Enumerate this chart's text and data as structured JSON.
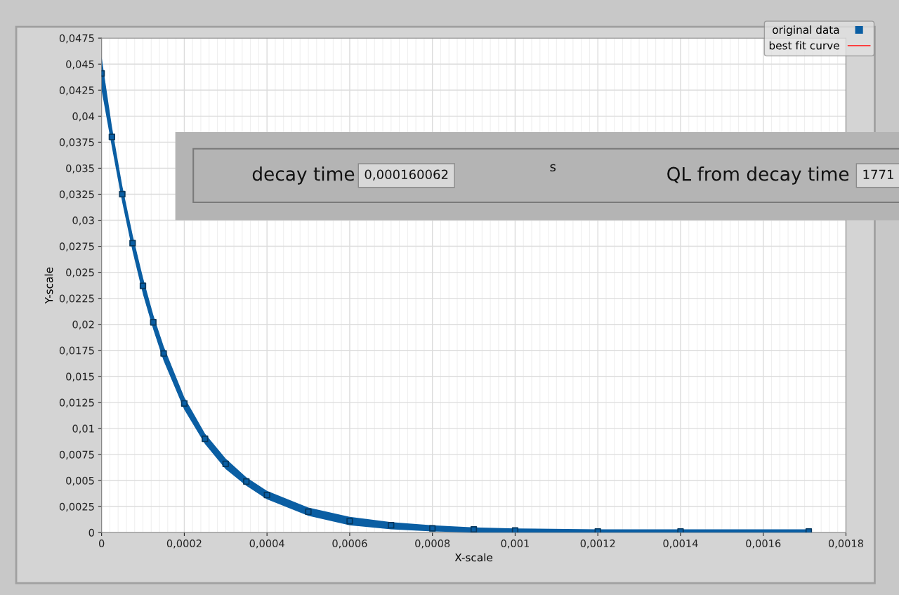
{
  "chart_data": {
    "type": "scatter",
    "xlabel": "X-scale",
    "ylabel": "Y-scale",
    "x": [
      0,
      2.5e-05,
      5e-05,
      7.5e-05,
      0.0001,
      0.000125,
      0.00015,
      0.0002,
      0.00025,
      0.0003,
      0.00035,
      0.0004,
      0.0005,
      0.0006,
      0.0007,
      0.0008,
      0.0009,
      0.001,
      0.0012,
      0.0014,
      0.00171
    ],
    "series": [
      {
        "name": "original data",
        "color": "#0a5ea3",
        "marker": "square",
        "values": [
          0.0441,
          0.038,
          0.0325,
          0.0278,
          0.0237,
          0.0202,
          0.0172,
          0.0124,
          0.009,
          0.0066,
          0.0049,
          0.0036,
          0.002,
          0.0011,
          0.0007,
          0.0004,
          0.0003,
          0.0002,
          0.0001,
          0.0001,
          0.0001
        ],
        "lower": [
          0.0425,
          0.037,
          0.0317,
          0.027,
          0.0229,
          0.0195,
          0.0165,
          0.0118,
          0.0085,
          0.0061,
          0.0045,
          0.0032,
          0.0016,
          0.0007,
          0.0003,
          0.0001,
          0.0,
          0.0,
          0.0,
          0.0,
          0.0
        ],
        "upper": [
          0.0457,
          0.039,
          0.0333,
          0.0286,
          0.0245,
          0.0209,
          0.0179,
          0.013,
          0.0095,
          0.0071,
          0.0053,
          0.004,
          0.0024,
          0.0015,
          0.001,
          0.0007,
          0.0005,
          0.0004,
          0.0003,
          0.0003,
          0.0003
        ]
      },
      {
        "name": "best fit curve",
        "type": "line",
        "color": "#ff4040",
        "line_style": "solid",
        "values": [
          null,
          null,
          null,
          null,
          null,
          null,
          null,
          null,
          null,
          null,
          null,
          null,
          null,
          null,
          null,
          null,
          null,
          null,
          null,
          null,
          null
        ]
      }
    ],
    "xlim": [
      0,
      0.0018
    ],
    "xticks": [
      0,
      {
        "value": 0.0002,
        "label": "0,0002"
      },
      {
        "value": 0.0004,
        "label": "0,0004"
      },
      {
        "value": 0.0006,
        "label": "0,0006"
      },
      {
        "value": 0.0008,
        "label": "0,0008"
      },
      {
        "value": 0.001,
        "label": "0,001"
      },
      {
        "value": 0.0012,
        "label": "0,0012"
      },
      {
        "value": 0.0014,
        "label": "0,0014"
      },
      {
        "value": 0.0016,
        "label": "0,0016"
      },
      {
        "value": 0.0018,
        "label": "0,0018"
      }
    ],
    "ylim": [
      0,
      0.0475
    ],
    "yticks": [
      0,
      {
        "value": 0.0025,
        "label": "0,0025"
      },
      {
        "value": 0.005,
        "label": "0,005"
      },
      {
        "value": 0.0075,
        "label": "0,0075"
      },
      {
        "value": 0.01,
        "label": "0,01"
      },
      {
        "value": 0.0125,
        "label": "0,0125"
      },
      {
        "value": 0.015,
        "label": "0,015"
      },
      {
        "value": 0.0175,
        "label": "0,0175"
      },
      {
        "value": 0.02,
        "label": "0,02"
      },
      {
        "value": 0.0225,
        "label": "0,0225"
      },
      {
        "value": 0.025,
        "label": "0,025"
      },
      {
        "value": 0.0275,
        "label": "0,0275"
      },
      {
        "value": 0.03,
        "label": "0,03"
      },
      {
        "value": 0.0325,
        "label": "0,0325"
      },
      {
        "value": 0.035,
        "label": "0,035"
      },
      {
        "value": 0.0375,
        "label": "0,0375"
      },
      {
        "value": 0.04,
        "label": "0,04"
      },
      {
        "value": 0.0425,
        "label": "0,0425"
      },
      {
        "value": 0.045,
        "label": "0,045"
      },
      {
        "value": 0.0475,
        "label": "0,0475"
      }
    ],
    "grid": true,
    "legend": "top right",
    "annotations": [
      "decay time",
      "0,000160062",
      "s",
      "QL from decay time",
      "1771"
    ]
  }
}
